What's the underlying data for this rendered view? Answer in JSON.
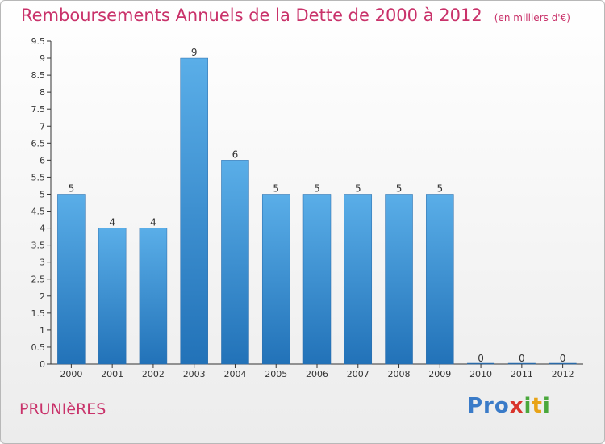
{
  "chart_data": {
    "type": "bar",
    "title": "Remboursements Annuels de la Dette de 2000 à 2012",
    "unit": "(en milliers d'€)",
    "categories": [
      "2000",
      "2001",
      "2002",
      "2003",
      "2004",
      "2005",
      "2006",
      "2007",
      "2008",
      "2009",
      "2010",
      "2011",
      "2012"
    ],
    "values": [
      5,
      4,
      4,
      9,
      6,
      5,
      5,
      5,
      5,
      5,
      0,
      0,
      0
    ],
    "data_labels": [
      "5",
      "4",
      "4",
      "9",
      "6",
      "5",
      "5",
      "5",
      "5",
      "5",
      "0",
      "0",
      "0"
    ],
    "y_ticks": [
      "0",
      "0.5",
      "1",
      "1.5",
      "2",
      "2.5",
      "3",
      "3.5",
      "4",
      "4.5",
      "5",
      "5.5",
      "6",
      "6.5",
      "7",
      "7.5",
      "8",
      "8.5",
      "9",
      "9.5"
    ],
    "ylim": [
      0,
      9.5
    ],
    "bar_color": "#3a8fd6",
    "grid": false
  },
  "commune": "PRUNIèRES",
  "logo": {
    "p1": "Pro",
    "p2": "x",
    "p3": "i",
    "p4": "t",
    "p5": "i"
  }
}
